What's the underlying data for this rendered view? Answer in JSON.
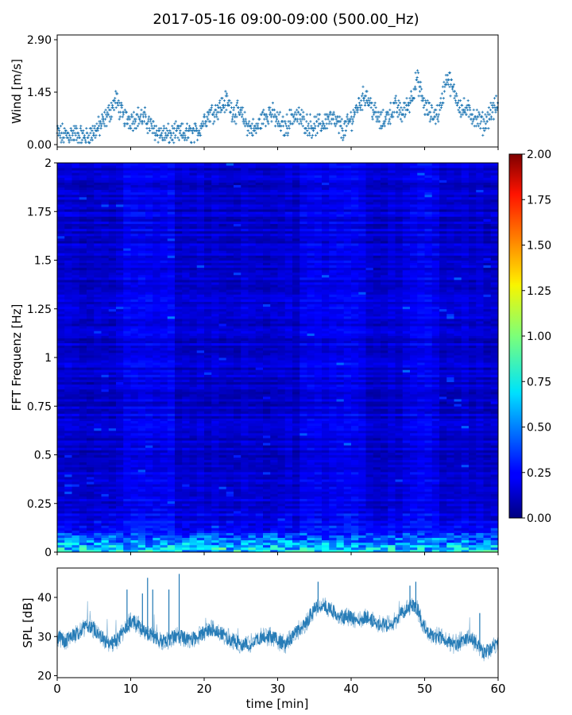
{
  "title": "2017-05-16 09:00-09:00 (500.00_Hz)",
  "chart_data": [
    {
      "type": "scatter",
      "name": "wind",
      "ylabel": "Wind [m/s]",
      "xlim": [
        0,
        60
      ],
      "ylim": [
        0.0,
        2.9
      ],
      "yticks": [
        0.0,
        1.45,
        2.9
      ],
      "ytick_labels": [
        "0.00",
        "1.45",
        "2.90"
      ],
      "xticks": [
        0,
        10,
        20,
        30,
        40,
        50,
        60
      ],
      "color": "#1f77b4",
      "marker": "+",
      "x": [
        0,
        1,
        2,
        3,
        4,
        5,
        6,
        7,
        8,
        9,
        10,
        11,
        12,
        13,
        14,
        15,
        16,
        17,
        18,
        19,
        20,
        21,
        22,
        23,
        24,
        25,
        26,
        27,
        28,
        29,
        30,
        31,
        32,
        33,
        34,
        35,
        36,
        37,
        38,
        39,
        40,
        41,
        42,
        43,
        44,
        45,
        46,
        47,
        48,
        49,
        50,
        51,
        52,
        53,
        54,
        55,
        56,
        57,
        58,
        59,
        60
      ],
      "y": [
        0.3,
        0.25,
        0.3,
        0.25,
        0.2,
        0.35,
        0.55,
        0.85,
        1.25,
        0.75,
        0.7,
        0.75,
        0.7,
        0.45,
        0.3,
        0.25,
        0.3,
        0.3,
        0.3,
        0.3,
        0.7,
        0.9,
        1.0,
        1.2,
        0.9,
        0.85,
        0.5,
        0.4,
        0.75,
        0.9,
        0.65,
        0.45,
        0.8,
        0.75,
        0.55,
        0.5,
        0.55,
        0.75,
        0.6,
        0.4,
        0.7,
        1.1,
        1.4,
        0.95,
        0.6,
        0.8,
        1.05,
        0.85,
        1.2,
        1.8,
        1.05,
        0.8,
        0.9,
        1.9,
        1.45,
        1.0,
        0.9,
        0.75,
        0.55,
        0.9,
        1.1
      ]
    },
    {
      "type": "heatmap",
      "name": "spectrogram",
      "ylabel": "FFT Frequenz [Hz]",
      "xlim": [
        0,
        60
      ],
      "ylim": [
        0,
        2
      ],
      "yticks": [
        0,
        0.25,
        0.5,
        0.75,
        1,
        1.25,
        1.5,
        1.75,
        2
      ],
      "ytick_labels": [
        "0",
        "0.25",
        "0.5",
        "0.75",
        "1",
        "1.25",
        "1.5",
        "1.75",
        "2"
      ],
      "colormap": "jet",
      "colorbar": {
        "vmin": 0.0,
        "vmax": 2.0,
        "ticks": [
          0.0,
          0.25,
          0.5,
          0.75,
          1.0,
          1.25,
          1.5,
          1.75,
          2.0
        ],
        "tick_labels": [
          "0.00",
          "0.25",
          "0.50",
          "0.75",
          "1.00",
          "1.25",
          "1.50",
          "1.75",
          "2.00"
        ]
      },
      "typical_level": 0.15,
      "low_frequency_band_max_hz": 0.1,
      "low_frequency_level": 0.9
    },
    {
      "type": "line",
      "name": "spl",
      "ylabel": "SPL [dB]",
      "xlabel": "time [min]",
      "xlim": [
        0,
        60
      ],
      "ylim": [
        19.5,
        47.5
      ],
      "yticks": [
        20,
        30,
        40
      ],
      "ytick_labels": [
        "20",
        "30",
        "40"
      ],
      "xticks": [
        0,
        10,
        20,
        30,
        40,
        50,
        60
      ],
      "xtick_labels": [
        "0",
        "10",
        "20",
        "30",
        "40",
        "50",
        "60"
      ],
      "color": "#1f77b4",
      "x": [
        0,
        1,
        2,
        3,
        4,
        5,
        6,
        7,
        8,
        9,
        10,
        11,
        12,
        13,
        14,
        15,
        16,
        17,
        18,
        19,
        20,
        21,
        22,
        23,
        24,
        25,
        26,
        27,
        28,
        29,
        30,
        31,
        32,
        33,
        34,
        35,
        36,
        37,
        38,
        39,
        40,
        41,
        42,
        43,
        44,
        45,
        46,
        47,
        48,
        49,
        50,
        51,
        52,
        53,
        54,
        55,
        56,
        57,
        58,
        59,
        60
      ],
      "y": [
        30,
        29,
        30,
        31,
        33,
        32,
        30,
        28,
        29,
        31,
        34,
        33,
        31,
        30,
        29,
        29,
        30,
        30,
        29,
        30,
        31,
        32,
        31,
        30,
        29,
        28,
        28,
        29,
        30,
        30,
        29,
        28,
        30,
        32,
        34,
        37,
        38,
        37,
        36,
        35,
        35,
        34,
        35,
        34,
        33,
        33,
        34,
        36,
        38,
        37,
        32,
        30,
        30,
        29,
        28,
        29,
        30,
        28,
        26,
        27,
        28
      ],
      "spikes": [
        {
          "x": 9.5,
          "y": 42
        },
        {
          "x": 11.6,
          "y": 41
        },
        {
          "x": 12.3,
          "y": 45
        },
        {
          "x": 13.0,
          "y": 42
        },
        {
          "x": 15.2,
          "y": 42
        },
        {
          "x": 16.6,
          "y": 46
        },
        {
          "x": 35.5,
          "y": 44
        },
        {
          "x": 48.0,
          "y": 43
        },
        {
          "x": 48.8,
          "y": 44
        },
        {
          "x": 57.5,
          "y": 36
        }
      ]
    }
  ]
}
